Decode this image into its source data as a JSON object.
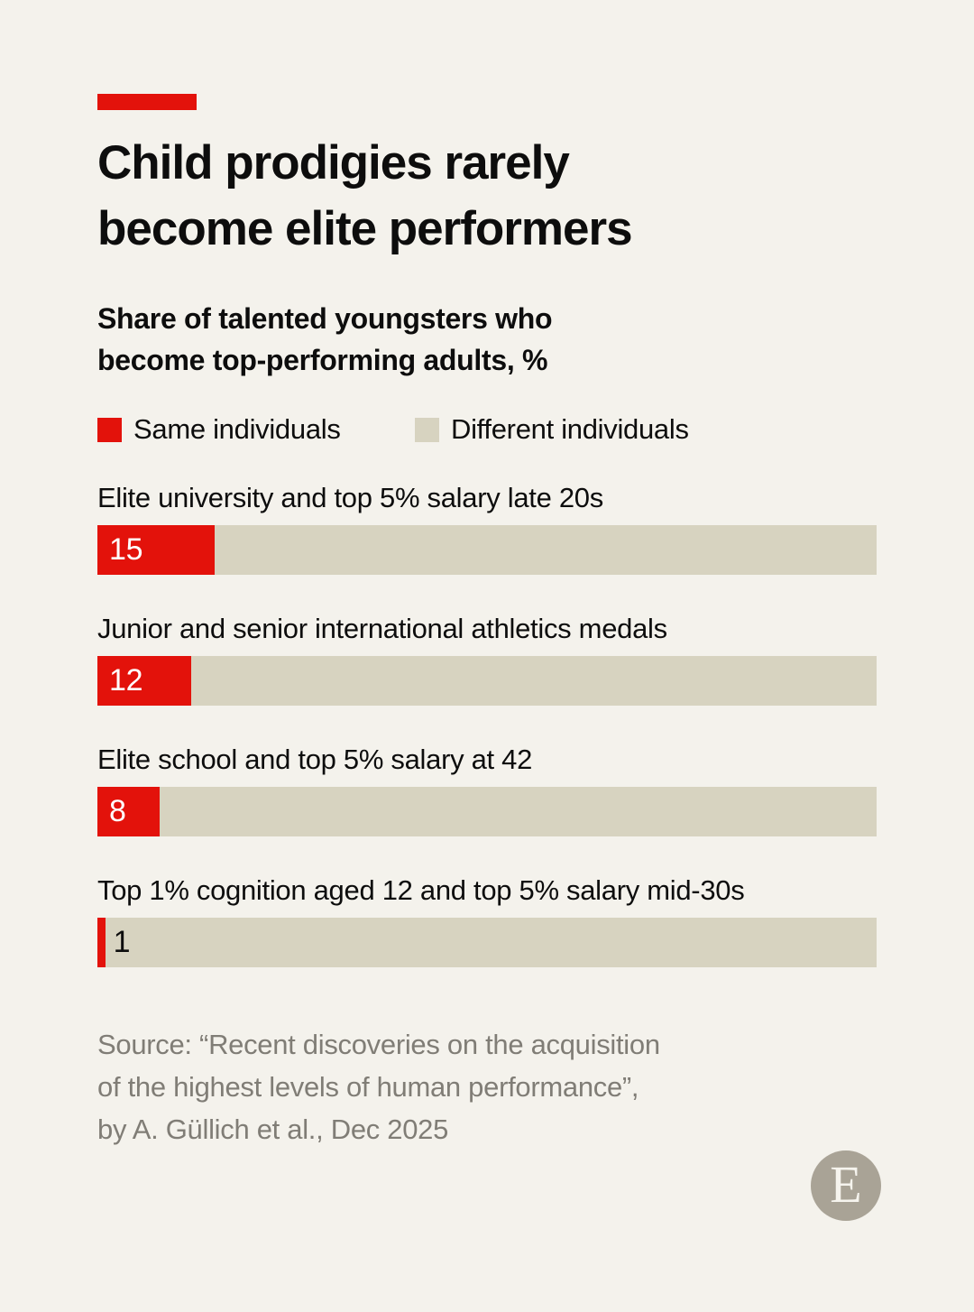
{
  "colors": {
    "background": "#f4f2ec",
    "red": "#e3120b",
    "beige": "#d7d3c0",
    "text": "#0d0d0d",
    "source_gray": "#807d76",
    "logo_circle": "#a9a396"
  },
  "header": {
    "title_line1": "Child prodigies rarely",
    "title_line2": "become elite performers",
    "subtitle_line1": "Share of talented youngsters who",
    "subtitle_line2": "become top-performing adults, %"
  },
  "legend": [
    {
      "label": "Same individuals",
      "color": "#e3120b"
    },
    {
      "label": "Different individuals",
      "color": "#d7d3c0"
    }
  ],
  "chart_data": {
    "type": "bar",
    "orientation": "horizontal",
    "title": "Child prodigies rarely become elite performers",
    "subtitle": "Share of talented youngsters who become top-performing adults, %",
    "unit": "%",
    "xlim": [
      0,
      100
    ],
    "categories": [
      "Elite university and top 5% salary late 20s",
      "Junior and senior international athletics medals",
      "Elite school and top 5% salary at 42",
      "Top 1% cognition aged 12 and top 5% salary mid-30s"
    ],
    "values": [
      15,
      12,
      8,
      1
    ],
    "series": [
      {
        "name": "Same individuals",
        "color": "#e3120b",
        "values": [
          15,
          12,
          8,
          1
        ]
      },
      {
        "name": "Different individuals",
        "color": "#d7d3c0",
        "values": [
          85,
          88,
          92,
          99
        ]
      }
    ],
    "value_label_outside_threshold": 5
  },
  "source": {
    "line1": "Source: “Recent discoveries on the acquisition",
    "line2": "of the highest levels of human performance”,",
    "line3": "by A. Güllich et al., Dec 2025"
  },
  "brand": {
    "logo_letter": "E"
  }
}
